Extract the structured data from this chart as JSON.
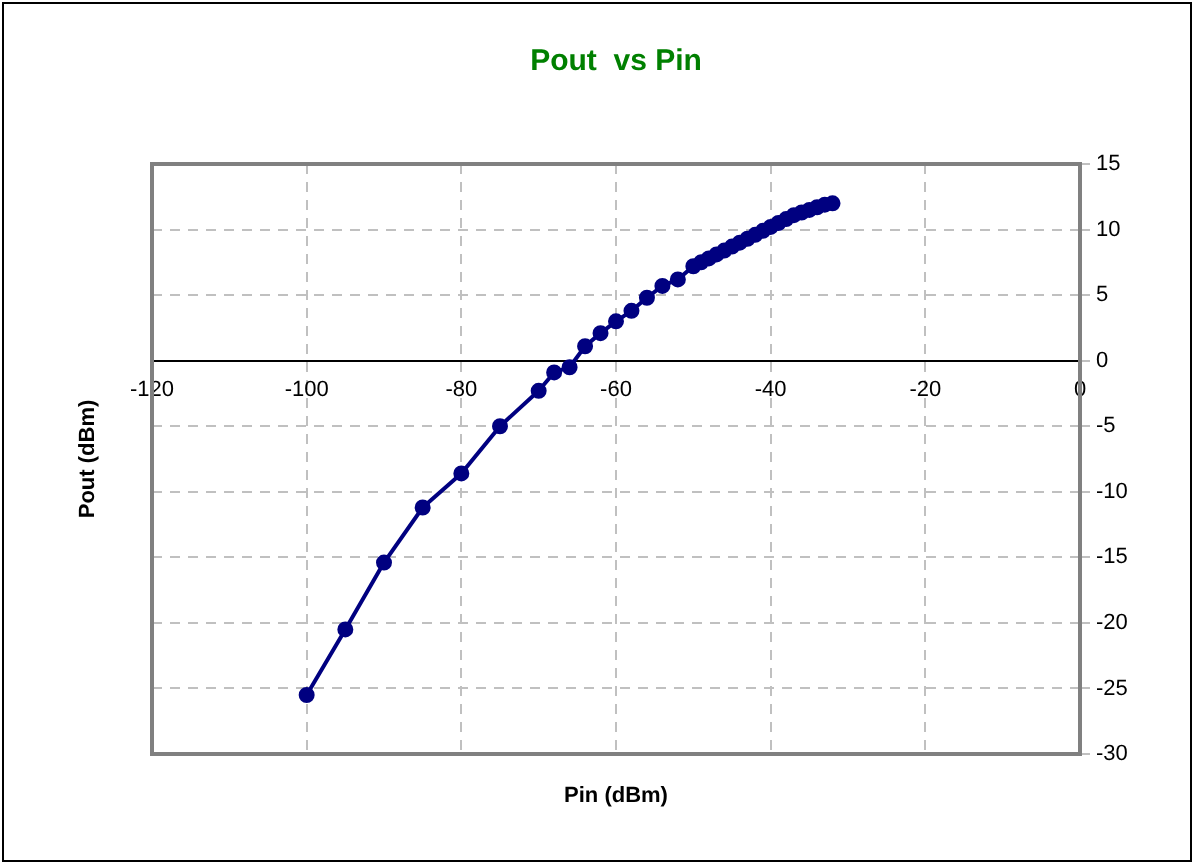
{
  "chart_data": {
    "type": "line",
    "title": "Pout  vs Pin",
    "xlabel": "Pin (dBm)",
    "ylabel": "Pout (dBm)",
    "x": [
      -100,
      -95,
      -90,
      -85,
      -80,
      -75,
      -70,
      -68,
      -66,
      -64,
      -62,
      -60,
      -58,
      -56,
      -54,
      -52,
      -50,
      -49,
      -48,
      -47,
      -46,
      -45,
      -44,
      -43,
      -42,
      -41,
      -40,
      -39,
      -38,
      -37,
      -36,
      -35,
      -34,
      -33,
      -32
    ],
    "series": [
      {
        "color": "#000080",
        "values": [
          -25.5,
          -20.5,
          -15.4,
          -11.2,
          -8.6,
          -5.0,
          -2.3,
          -0.9,
          -0.5,
          1.1,
          2.1,
          3.0,
          3.8,
          4.8,
          5.7,
          6.2,
          7.2,
          7.5,
          7.8,
          8.1,
          8.4,
          8.7,
          9.0,
          9.3,
          9.6,
          9.9,
          10.2,
          10.5,
          10.8,
          11.1,
          11.3,
          11.5,
          11.7,
          11.9,
          12.0
        ]
      }
    ],
    "xlim": [
      -120,
      0
    ],
    "xticks": [
      -120,
      -100,
      -80,
      -60,
      -40,
      -20,
      0
    ],
    "ylim": [
      -30,
      15
    ],
    "yticks": [
      -30,
      -25,
      -20,
      -15,
      -10,
      -5,
      0,
      5,
      10,
      15
    ],
    "grid": true,
    "legend": false,
    "marker": "circle",
    "line_style": "solid"
  }
}
